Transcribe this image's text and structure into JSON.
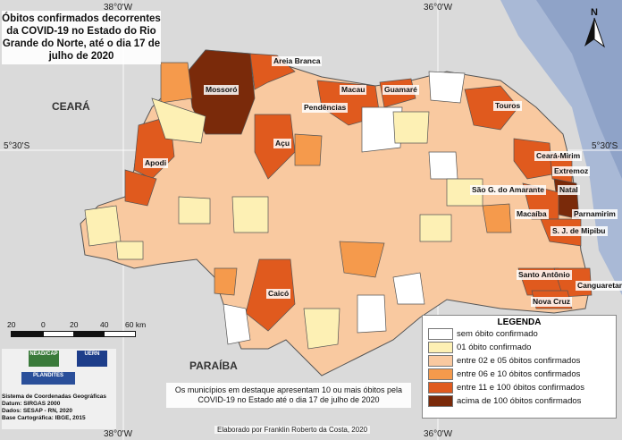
{
  "title": "Óbitos confirmados decorrentes da COVID-19 no Estado do Rio Grande do Norte, até o dia 17 de julho de 2020",
  "coords": {
    "top_left": "38°0'W",
    "top_right": "36°0'W",
    "bottom_left": "38°0'W",
    "bottom_right": "36°0'W",
    "left_lat": "5°30'S",
    "right_lat": "5°30'S"
  },
  "states": {
    "ceara": "CEARÁ",
    "paraiba": "PARAÍBA"
  },
  "north_label": "N",
  "cities": {
    "areia_branca": "Areia Branca",
    "mossoro": "Mossoró",
    "macau": "Macau",
    "guamare": "Guamaré",
    "pendencias": "Pendências",
    "touros": "Touros",
    "acu": "Açu",
    "apodi": "Apodi",
    "ceara_mirim": "Ceará-Mirim",
    "extremoz": "Extremoz",
    "natal": "Natal",
    "sao_goncalo": "São G. do Amarante",
    "macaiba": "Macaíba",
    "parnamirim": "Parnamirim",
    "sjmipibu": "S. J. de Mipibu",
    "caico": "Caicó",
    "santo_antonio": "Santo Antônio",
    "canguaretama": "Canguaretama",
    "nova_cruz": "Nova Cruz"
  },
  "scale": {
    "ticks": [
      "20",
      "0",
      "20",
      "40",
      "60 km"
    ]
  },
  "logos": {
    "nead": "NEAD/CAP",
    "uern": "UERN",
    "plandites": "PLANDITES"
  },
  "credits": [
    "Sistema de Coordenadas Geográficas",
    "Datum: SIRGAS 2000",
    "Dados: SESAP - RN, 2020",
    "Base Cartográfica: IBGE, 2015"
  ],
  "note": "Os municípios em destaque apresentam 10 ou mais óbitos pela COVID-19 no Estado até o dia 17 de julho de 2020",
  "author": "Elaborado por Franklin Roberto da Costa, 2020",
  "legend": {
    "title": "LEGENDA",
    "items": [
      {
        "label": "sem óbito confirmado",
        "color": "#ffffff"
      },
      {
        "label": "01 óbito confirmado",
        "color": "#fdf0b4"
      },
      {
        "label": "entre 02 e 05 óbitos confirmados",
        "color": "#f9c9a0"
      },
      {
        "label": "entre 06 e 10 óbitos confirmados",
        "color": "#f59a4c"
      },
      {
        "label": "entre 11 e 100 óbitos confirmados",
        "color": "#e05a1e"
      },
      {
        "label": "acima de 100 óbitos confirmados",
        "color": "#7a2a0a"
      }
    ]
  }
}
